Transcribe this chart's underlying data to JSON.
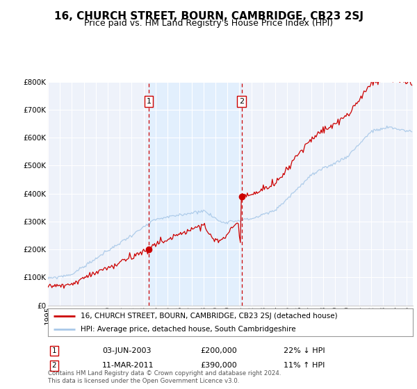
{
  "title": "16, CHURCH STREET, BOURN, CAMBRIDGE, CB23 2SJ",
  "subtitle": "Price paid vs. HM Land Registry's House Price Index (HPI)",
  "legend_line1": "16, CHURCH STREET, BOURN, CAMBRIDGE, CB23 2SJ (detached house)",
  "legend_line2": "HPI: Average price, detached house, South Cambridgeshire",
  "annotation1_date": "03-JUN-2003",
  "annotation1_price": "£200,000",
  "annotation1_hpi": "22% ↓ HPI",
  "annotation1_year": 2003.42,
  "annotation1_value": 200000,
  "annotation2_date": "11-MAR-2011",
  "annotation2_price": "£390,000",
  "annotation2_hpi": "11% ↑ HPI",
  "annotation2_year": 2011.19,
  "annotation2_value": 390000,
  "ylim": [
    0,
    800000
  ],
  "xlim_start": 1995,
  "xlim_end": 2025.5,
  "hpi_color": "#a8c8e8",
  "price_color": "#cc0000",
  "shade_color": "#ddeeff",
  "footer": "Contains HM Land Registry data © Crown copyright and database right 2024.\nThis data is licensed under the Open Government Licence v3.0.",
  "background_color": "#ffffff",
  "plot_bg_color": "#eef2fa",
  "grid_color": "#ffffff",
  "title_fontsize": 11,
  "subtitle_fontsize": 9,
  "tick_fontsize": 7.5
}
